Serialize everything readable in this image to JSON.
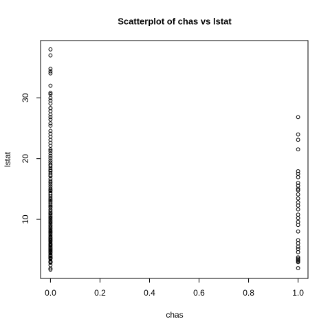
{
  "chart_data": {
    "type": "scatter",
    "title": "Scatterplot of chas vs lstat",
    "x_label": "chas",
    "y_label": "lstat",
    "color": "#000000",
    "xlim": [
      -0.04,
      1.04
    ],
    "xticks": [
      {
        "value": 0,
        "label": "0.0"
      },
      0.2,
      0.4,
      0.6,
      0.8,
      {
        "value": 1,
        "label": "1.0"
      }
    ],
    "ylim": [
      0.28,
      39.42
    ],
    "yticks": [
      10,
      20,
      30
    ],
    "series": [
      {
        "x": 0,
        "values": [
          1.73,
          1.92,
          2.47,
          2.87,
          2.94,
          2.96,
          2.98,
          3.01,
          3.11,
          3.53,
          3.56,
          3.57,
          3.7,
          3.76,
          3.95,
          4.03,
          4.21,
          4.45,
          4.59,
          4.67,
          4.84,
          4.98,
          5.03,
          5.25,
          5.29,
          5.49,
          5.68,
          5.81,
          5.9,
          6.05,
          6.29,
          6.47,
          6.58,
          6.72,
          6.86,
          7.01,
          7.14,
          7.39,
          7.6,
          7.79,
          7.9,
          8.05,
          8.23,
          8.47,
          8.65,
          8.88,
          9.04,
          9.28,
          9.5,
          9.69,
          9.88,
          10.11,
          10.3,
          10.5,
          10.74,
          10.97,
          11.1,
          11.38,
          11.64,
          11.97,
          12.13,
          12.34,
          12.6,
          12.86,
          13.09,
          13.27,
          13.51,
          13.83,
          14.1,
          14.37,
          14.67,
          14.81,
          15.02,
          15.37,
          15.7,
          16.03,
          16.3,
          16.65,
          17.09,
          17.31,
          17.6,
          17.92,
          18.13,
          18.46,
          18.8,
          19.01,
          19.37,
          19.69,
          20.08,
          20.45,
          20.85,
          21.24,
          21.52,
          22.11,
          22.6,
          23.09,
          23.6,
          24.1,
          24.56,
          25.41,
          25.79,
          26.42,
          26.82,
          27.26,
          27.8,
          28.28,
          28.32,
          29.05,
          29.55,
          29.97,
          30.59,
          30.81,
          31.99,
          34.02,
          34.37,
          34.77,
          36.98,
          37.97
        ]
      },
      {
        "x": 1,
        "values": [
          1.98,
          2.96,
          3.16,
          3.33,
          3.53,
          3.76,
          4.61,
          5.12,
          5.5,
          6.07,
          6.58,
          8.01,
          9.08,
          9.59,
          10.21,
          10.78,
          11.64,
          12.27,
          12.8,
          13.44,
          14.1,
          14.79,
          15.03,
          15.55,
          16.0,
          16.94,
          17.5,
          17.93,
          21.52,
          23.1,
          23.97,
          26.82
        ]
      }
    ]
  }
}
